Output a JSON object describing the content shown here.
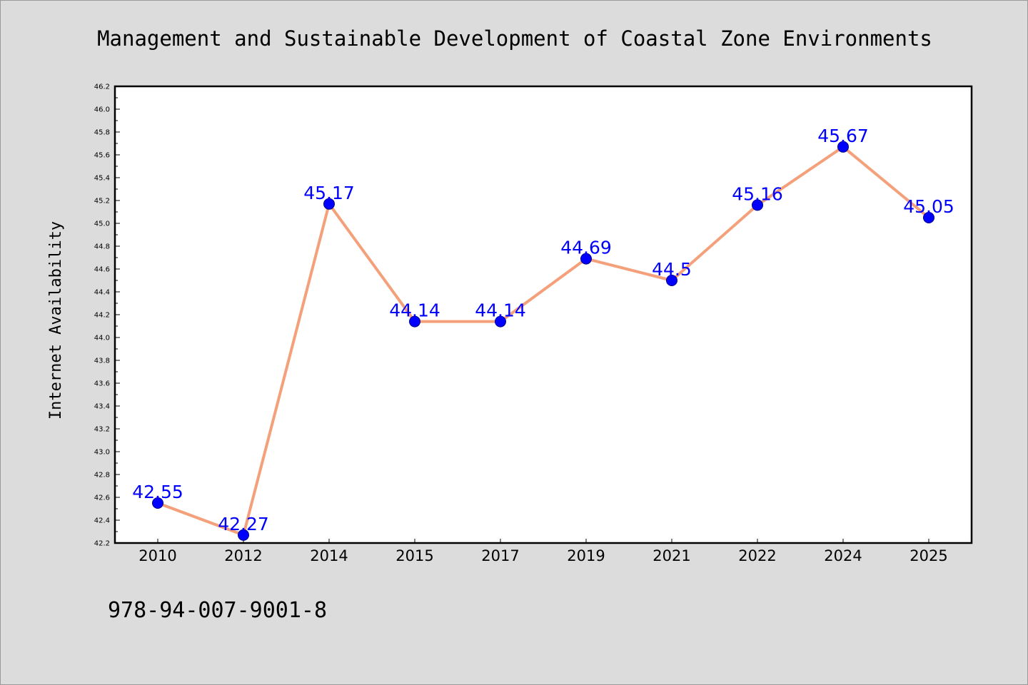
{
  "chart_data": {
    "type": "line",
    "title": "Management and Sustainable Development of Coastal Zone Environments",
    "xlabel": "",
    "ylabel": "Internet Availability",
    "categories": [
      "2010",
      "2012",
      "2014",
      "2015",
      "2017",
      "2019",
      "2021",
      "2022",
      "2024",
      "2025"
    ],
    "series": [
      {
        "values": [
          42.55,
          42.27,
          45.17,
          44.14,
          44.14,
          44.69,
          44.5,
          45.16,
          45.67,
          45.05
        ],
        "data_labels": [
          "42.55",
          "42.27",
          "45.17",
          "44.14",
          "44.14",
          "44.69",
          "44.5",
          "45.16",
          "45.67",
          "45.05"
        ],
        "line_color": "#f4a07a",
        "marker_color": "#0000ff"
      }
    ],
    "ylim": [
      42.2,
      46.2
    ],
    "yticks": [
      "42.2",
      "42.4",
      "42.6",
      "42.8",
      "43.0",
      "43.2",
      "43.4",
      "43.6",
      "43.8",
      "44.0",
      "44.2",
      "44.4",
      "44.6",
      "44.8",
      "45.0",
      "45.2",
      "45.4",
      "45.6",
      "45.8",
      "46.0",
      "46.2"
    ],
    "grid": false,
    "legend": "none"
  },
  "footer": {
    "isbn": "978-94-007-9001-8"
  },
  "colors": {
    "background": "#dcdcdc",
    "plot_background": "#ffffff",
    "line": "#f4a07a",
    "marker": "#0000ff",
    "data_label": "#0000ff"
  }
}
